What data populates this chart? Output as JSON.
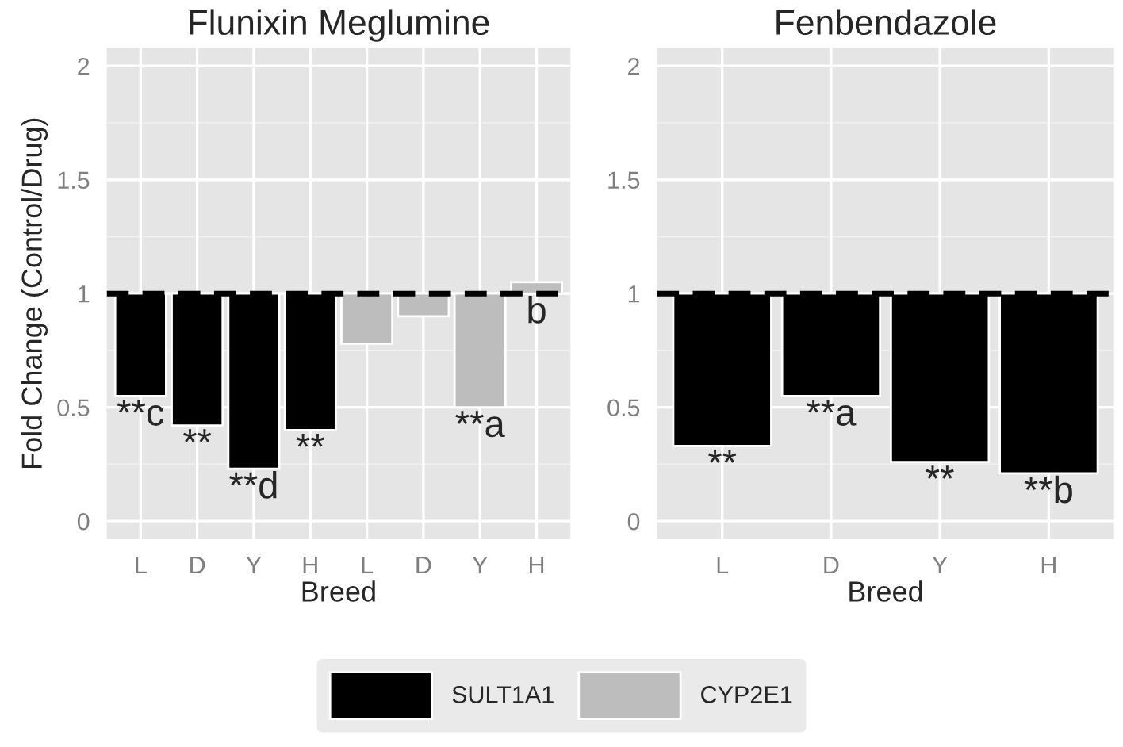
{
  "chart_data": [
    {
      "type": "bar",
      "title": "Flunixin Meglumine",
      "xlabel": "Breed",
      "ylabel": "Fold Change (Control/Drug)",
      "categories": [
        "L",
        "D",
        "Y",
        "H",
        "L",
        "D",
        "Y",
        "H"
      ],
      "series": [
        {
          "name": "SULT1A1",
          "color": "#000000",
          "base": [
            1,
            1,
            1,
            1,
            null,
            null,
            null,
            null
          ],
          "values": [
            -0.45,
            -0.58,
            -0.77,
            -0.6,
            null,
            null,
            null,
            null
          ],
          "value_labels": [
            "**c",
            "**",
            "**d",
            "**",
            null,
            null,
            null,
            null
          ]
        },
        {
          "name": "CYP2E1",
          "color": "#bdbdbd",
          "base": [
            null,
            null,
            null,
            null,
            1,
            1,
            1,
            1
          ],
          "values": [
            null,
            null,
            null,
            null,
            -0.22,
            -0.1,
            -0.5,
            0.05
          ],
          "value_labels": [
            null,
            null,
            null,
            null,
            null,
            null,
            "**a",
            "b"
          ]
        }
      ],
      "ylim": [
        -0.08,
        2.08
      ],
      "yticks": [
        0,
        0.5,
        1,
        1.5,
        2
      ],
      "grid": true,
      "legend": "bottom",
      "ref_lines": [
        {
          "axis": "y",
          "value": 1,
          "color": "#000000",
          "line_style": "dashed"
        }
      ]
    },
    {
      "type": "bar",
      "title": "Fenbendazole",
      "xlabel": "Breed",
      "categories": [
        "L",
        "D",
        "Y",
        "H"
      ],
      "series": [
        {
          "color": "#000000",
          "base": [
            1,
            1,
            1,
            1
          ],
          "values": [
            -0.67,
            -0.45,
            -0.74,
            -0.79
          ],
          "value_labels": [
            "**",
            "**a",
            "**",
            "**b"
          ]
        }
      ],
      "ylim": [
        -0.08,
        2.08
      ],
      "yticks": [
        0,
        0.5,
        1,
        1.5,
        2
      ],
      "grid": true,
      "ref_lines": [
        {
          "axis": "y",
          "value": 1,
          "color": "#000000",
          "line_style": "dashed"
        }
      ]
    }
  ]
}
